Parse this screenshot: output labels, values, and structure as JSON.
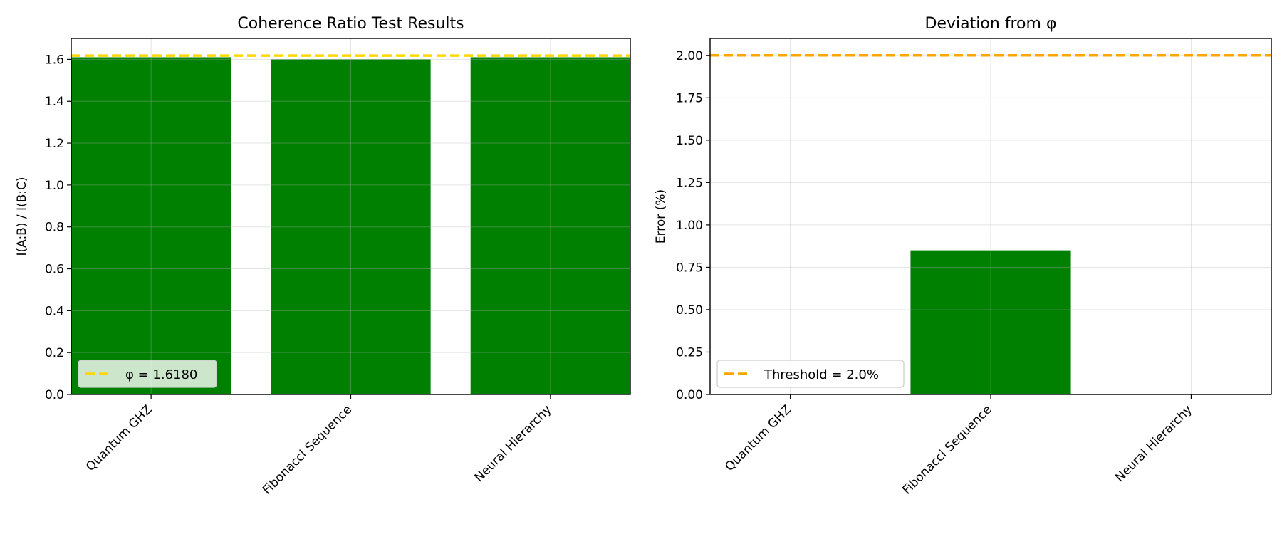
{
  "chart_data": [
    {
      "type": "bar",
      "title": "Coherence Ratio Test Results",
      "xlabel": "",
      "ylabel": "I(A:B) / I(B:C)",
      "categories": [
        "Quantum GHZ",
        "Fibonacci Sequence",
        "Neural Hierarchy"
      ],
      "values": [
        1.61,
        1.6,
        1.61
      ],
      "ylim": [
        0,
        1.7
      ],
      "yticks": [
        0.0,
        0.2,
        0.4,
        0.6,
        0.8,
        1.0,
        1.2,
        1.4,
        1.6
      ],
      "ytick_labels": [
        "0.0",
        "0.2",
        "0.4",
        "0.6",
        "0.8",
        "1.0",
        "1.2",
        "1.4",
        "1.6"
      ],
      "bar_color": "#008000",
      "reference_line": {
        "value": 1.618,
        "color": "#FFD700",
        "style": "dashed",
        "label": "φ = 1.6180"
      },
      "legend_position": "lower-left",
      "grid": true
    },
    {
      "type": "bar",
      "title": "Deviation from φ",
      "xlabel": "",
      "ylabel": "Error (%)",
      "categories": [
        "Quantum GHZ",
        "Fibonacci Sequence",
        "Neural Hierarchy"
      ],
      "values": [
        0.0,
        0.85,
        0.0
      ],
      "ylim": [
        0,
        2.1
      ],
      "yticks": [
        0.0,
        0.25,
        0.5,
        0.75,
        1.0,
        1.25,
        1.5,
        1.75,
        2.0
      ],
      "ytick_labels": [
        "0.00",
        "0.25",
        "0.50",
        "0.75",
        "1.00",
        "1.25",
        "1.50",
        "1.75",
        "2.00"
      ],
      "bar_color": "#008000",
      "reference_line": {
        "value": 2.0,
        "color": "#FFA500",
        "style": "dashed",
        "label": "Threshold = 2.0%"
      },
      "legend_position": "lower-left",
      "grid": true
    }
  ]
}
